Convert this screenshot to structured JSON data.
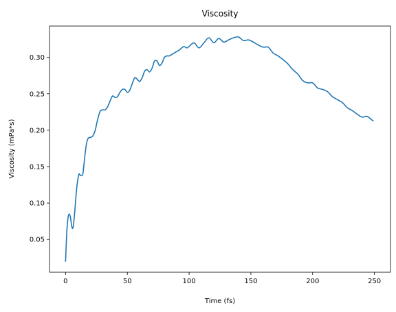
{
  "chart_data": {
    "type": "line",
    "title": "Viscosity",
    "xlabel": "Time (fs)",
    "ylabel": "Viscosity (mPa*s)",
    "xlim": [
      -13,
      263
    ],
    "ylim": [
      0.005,
      0.343
    ],
    "xticks": [
      0,
      50,
      100,
      150,
      200,
      250
    ],
    "yticks": [
      0.05,
      0.1,
      0.15,
      0.2,
      0.25,
      0.3
    ],
    "ytick_labels": [
      "0.05",
      "0.10",
      "0.15",
      "0.20",
      "0.25",
      "0.30"
    ],
    "grid": false,
    "legend": "none",
    "line_color": "#1f77b4",
    "series": [
      {
        "x": [
          0,
          1,
          2,
          3,
          4,
          5,
          6,
          7,
          8,
          9,
          10,
          11,
          12,
          13,
          14,
          15,
          16,
          17,
          18,
          19,
          20,
          22,
          24,
          26,
          28,
          30,
          32,
          34,
          36,
          38,
          40,
          42,
          44,
          46,
          48,
          50,
          52,
          54,
          56,
          58,
          60,
          62,
          64,
          66,
          68,
          70,
          72,
          74,
          76,
          78,
          80,
          82,
          84,
          86,
          88,
          90,
          92,
          94,
          96,
          98,
          100,
          104,
          108,
          112,
          116,
          120,
          124,
          128,
          132,
          136,
          140,
          144,
          148,
          152,
          156,
          160,
          164,
          168,
          172,
          176,
          180,
          184,
          188,
          192,
          196,
          200,
          204,
          208,
          212,
          216,
          220,
          224,
          228,
          232,
          236,
          240,
          244,
          248,
          249
        ],
        "y": [
          0.02,
          0.06,
          0.08,
          0.085,
          0.08,
          0.068,
          0.066,
          0.08,
          0.1,
          0.12,
          0.133,
          0.14,
          0.138,
          0.138,
          0.14,
          0.155,
          0.17,
          0.182,
          0.188,
          0.19,
          0.19,
          0.192,
          0.2,
          0.215,
          0.226,
          0.228,
          0.228,
          0.232,
          0.24,
          0.247,
          0.245,
          0.246,
          0.252,
          0.256,
          0.256,
          0.252,
          0.255,
          0.264,
          0.272,
          0.27,
          0.267,
          0.272,
          0.281,
          0.283,
          0.28,
          0.285,
          0.295,
          0.295,
          0.289,
          0.292,
          0.3,
          0.302,
          0.302,
          0.304,
          0.306,
          0.308,
          0.31,
          0.313,
          0.315,
          0.313,
          0.315,
          0.32,
          0.313,
          0.32,
          0.327,
          0.32,
          0.326,
          0.321,
          0.324,
          0.327,
          0.328,
          0.323,
          0.324,
          0.321,
          0.317,
          0.314,
          0.314,
          0.306,
          0.302,
          0.297,
          0.291,
          0.283,
          0.277,
          0.268,
          0.265,
          0.265,
          0.258,
          0.256,
          0.253,
          0.246,
          0.242,
          0.238,
          0.231,
          0.227,
          0.222,
          0.218,
          0.219,
          0.214,
          0.213
        ]
      }
    ]
  }
}
